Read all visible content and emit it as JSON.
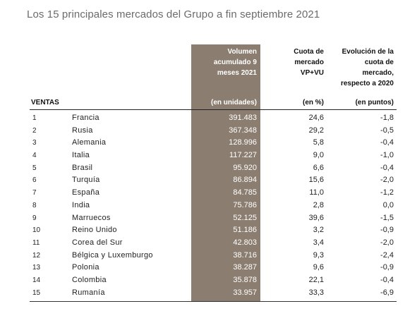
{
  "title": "Los 15 principales mercados del Grupo a fin septiembre 2021",
  "headers": {
    "ventas": "VENTAS",
    "volumen": [
      "Volumen",
      "acumulado 9",
      "meses 2021"
    ],
    "cuota": [
      "Cuota de",
      "mercado",
      "VP+VU"
    ],
    "evolucion": [
      "Evolución de la",
      "cuota de",
      "mercado,",
      "respecto a 2020"
    ]
  },
  "units": {
    "volumen": "(en unidades)",
    "cuota": "(en %)",
    "evolucion": "(en puntos)"
  },
  "colors": {
    "volume_column_bg": "#8b7e71",
    "volume_text": "#ffffff"
  },
  "rows": [
    {
      "rank": "1",
      "country": "Francia",
      "volumen": "391.483",
      "cuota": "24,6",
      "evolucion": "-1,8"
    },
    {
      "rank": "2",
      "country": "Rusia",
      "volumen": "367.348",
      "cuota": "29,2",
      "evolucion": "-0,5"
    },
    {
      "rank": "3",
      "country": "Alemania",
      "volumen": "128.996",
      "cuota": "5,8",
      "evolucion": "-0,4"
    },
    {
      "rank": "4",
      "country": "Italia",
      "volumen": "117.227",
      "cuota": "9,0",
      "evolucion": "-1,0"
    },
    {
      "rank": "5",
      "country": "Brasil",
      "volumen": "95.920",
      "cuota": "6,6",
      "evolucion": "-0,4"
    },
    {
      "rank": "6",
      "country": "Turquía",
      "volumen": "86.894",
      "cuota": "15,6",
      "evolucion": "-2,0"
    },
    {
      "rank": "7",
      "country": "España",
      "volumen": "84.785",
      "cuota": "11,0",
      "evolucion": "-1,2"
    },
    {
      "rank": "8",
      "country": "India",
      "volumen": "75.786",
      "cuota": "2,8",
      "evolucion": "0,0"
    },
    {
      "rank": "9",
      "country": "Marruecos",
      "volumen": "52.125",
      "cuota": "39,6",
      "evolucion": "-1,5"
    },
    {
      "rank": "10",
      "country": "Reino Unido",
      "volumen": "51.186",
      "cuota": "3,2",
      "evolucion": "-0,9"
    },
    {
      "rank": "11",
      "country": "Corea del Sur",
      "volumen": "42.803",
      "cuota": "3,4",
      "evolucion": "-2,0"
    },
    {
      "rank": "12",
      "country": "Bélgica y Luxemburgo",
      "volumen": "38.716",
      "cuota": "9,3",
      "evolucion": "-2,4"
    },
    {
      "rank": "13",
      "country": "Polonia",
      "volumen": "38.287",
      "cuota": "9,6",
      "evolucion": "-0,9"
    },
    {
      "rank": "14",
      "country": "Colombia",
      "volumen": "35.878",
      "cuota": "22,1",
      "evolucion": "-0,4"
    },
    {
      "rank": "15",
      "country": "Rumanía",
      "volumen": "33.957",
      "cuota": "33,3",
      "evolucion": "-6,9"
    }
  ]
}
